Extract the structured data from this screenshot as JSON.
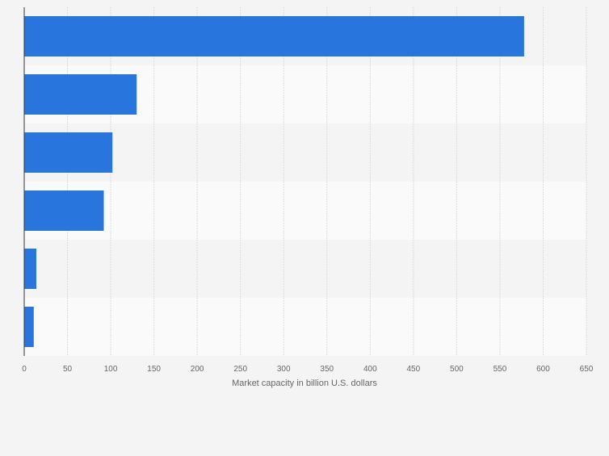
{
  "chart_data": {
    "type": "bar",
    "orientation": "horizontal",
    "categories": [
      "",
      "",
      "",
      "",
      "",
      ""
    ],
    "values": [
      578,
      130,
      102,
      92,
      14,
      11
    ],
    "xlabel": "Market capacity in billion U.S. dollars",
    "ylabel": "",
    "xlim": [
      0,
      650
    ],
    "xticks": [
      0,
      50,
      100,
      150,
      200,
      250,
      300,
      350,
      400,
      450,
      500,
      550,
      600,
      650
    ],
    "grid": true,
    "legend": "none",
    "colors": {
      "bar": "#2876dd",
      "band_a": "#f4f4f4",
      "band_b": "#fafafa",
      "grid": "#dcdcdc",
      "axis": "#333333",
      "text": "#666666"
    }
  }
}
